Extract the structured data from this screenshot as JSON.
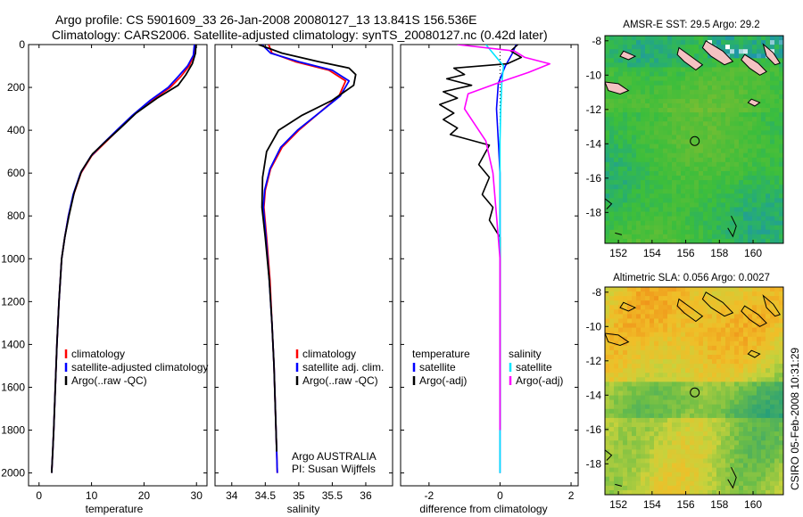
{
  "header": {
    "line1": "Argo profile: CS 5901609_33 26-Jan-2008 20080127_13 13.841S 156.536E",
    "line2": "Climatology: CARS2006. Satellite-adjusted climatology: synTS_20080127.nc (0.42d later)"
  },
  "footer": {
    "stamp": "CSIRO 05-Feb-2008 10:31:29",
    "credit_line1": "Argo AUSTRALIA",
    "credit_line2": "PI: Susan Wijffels"
  },
  "colors": {
    "climatology": "#ff0000",
    "satellite": "#0000ff",
    "argo": "#000000",
    "salinity_satellite": "#00e5ff",
    "salinity_argo": "#ff00ff"
  },
  "chart_data": [
    {
      "id": "temperature",
      "type": "line",
      "xlabel": "temperature",
      "ylabel": "",
      "xlim": [
        -2,
        32
      ],
      "ylim": [
        2060,
        0
      ],
      "xticks": [
        "0",
        "10",
        "20",
        "30"
      ],
      "yticks": [
        "0",
        "200",
        "400",
        "600",
        "800",
        "1000",
        "1200",
        "1400",
        "1600",
        "1800",
        "2000"
      ],
      "legend": {
        "position": "lower-right",
        "entries": [
          "climatology",
          "satellite-adjusted climatology",
          "Argo(..raw -QC)"
        ]
      },
      "series": [
        {
          "name": "climatology",
          "x": [
            29.7,
            29.5,
            28.6,
            27.0,
            25.0,
            21.5,
            18.0,
            15.0,
            12.5,
            10.0,
            8.0,
            6.6,
            5.6,
            4.9,
            4.3,
            3.8,
            3.4,
            3.1,
            2.8,
            2.6,
            2.4
          ],
          "y": [
            0,
            50,
            100,
            150,
            200,
            260,
            330,
            400,
            460,
            520,
            600,
            700,
            800,
            900,
            1000,
            1200,
            1400,
            1600,
            1800,
            1900,
            2000
          ]
        },
        {
          "name": "satellite-adjusted climatology",
          "x": [
            29.6,
            29.4,
            28.3,
            26.5,
            24.6,
            21.2,
            17.8,
            14.8,
            12.3,
            9.9,
            7.9,
            6.5,
            5.6,
            4.9,
            4.3,
            3.8,
            3.4,
            3.1,
            2.8,
            2.6,
            2.4
          ],
          "y": [
            0,
            50,
            100,
            150,
            200,
            260,
            330,
            400,
            460,
            520,
            600,
            700,
            800,
            900,
            1000,
            1200,
            1400,
            1600,
            1800,
            1900,
            2000
          ]
        },
        {
          "name": "Argo(..raw -QC)",
          "x": [
            29.9,
            29.8,
            29.2,
            28.0,
            26.5,
            22.5,
            18.5,
            15.5,
            12.8,
            10.2,
            8.1,
            6.7,
            5.7,
            4.9,
            4.3,
            3.8,
            3.4,
            3.1,
            2.8,
            2.6,
            2.4
          ],
          "y": [
            0,
            40,
            90,
            140,
            190,
            250,
            320,
            390,
            450,
            510,
            590,
            690,
            800,
            900,
            1000,
            1200,
            1400,
            1600,
            1800,
            1900,
            2000
          ]
        }
      ]
    },
    {
      "id": "salinity",
      "type": "line",
      "xlabel": "salinity",
      "ylabel": "",
      "xlim": [
        33.75,
        36.4
      ],
      "ylim": [
        2060,
        0
      ],
      "xticks": [
        "34",
        "34.5",
        "35",
        "35.5",
        "36"
      ],
      "yticks": [],
      "legend": {
        "position": "lower-right",
        "entries": [
          "climatology",
          "satellite adj. clim.",
          "Argo(..raw -QC)"
        ]
      },
      "series": [
        {
          "name": "climatology",
          "x": [
            34.55,
            34.6,
            34.95,
            35.45,
            35.7,
            35.6,
            35.3,
            35.0,
            34.75,
            34.58,
            34.5,
            34.48,
            34.52,
            34.57,
            34.6,
            34.63,
            34.65,
            34.67,
            34.68
          ],
          "y": [
            0,
            40,
            80,
            120,
            170,
            240,
            320,
            400,
            480,
            580,
            680,
            760,
            900,
            1100,
            1300,
            1500,
            1700,
            1900,
            2000
          ]
        },
        {
          "name": "satellite adj. clim.",
          "x": [
            34.45,
            34.58,
            35.0,
            35.5,
            35.75,
            35.62,
            35.3,
            34.98,
            34.73,
            34.57,
            34.49,
            34.47,
            34.51,
            34.56,
            34.6,
            34.63,
            34.65,
            34.67,
            34.68
          ],
          "y": [
            0,
            40,
            80,
            120,
            170,
            240,
            320,
            400,
            480,
            580,
            680,
            760,
            900,
            1100,
            1300,
            1500,
            1700,
            1900,
            2000
          ]
        },
        {
          "name": "Argo(..raw -QC)",
          "x": [
            34.4,
            34.75,
            35.3,
            35.75,
            35.85,
            35.82,
            35.5,
            35.05,
            34.7,
            34.52,
            34.46,
            34.45,
            34.5,
            34.56,
            34.6,
            34.63,
            34.65,
            34.67
          ],
          "y": [
            0,
            40,
            80,
            110,
            140,
            190,
            260,
            330,
            400,
            500,
            620,
            760,
            900,
            1100,
            1300,
            1500,
            1700,
            1900
          ]
        }
      ]
    },
    {
      "id": "difference",
      "type": "line",
      "xlabel": "difference from climatology",
      "ylabel": "",
      "xlim": [
        -2.8,
        2.2
      ],
      "ylim": [
        2060,
        0
      ],
      "xticks": [
        "-2",
        "0",
        "2"
      ],
      "yticks": [],
      "legend": {
        "position": "lower-right",
        "entries": [
          "temperature",
          "satellite",
          "Argo(-adj)",
          "salinity",
          "satellite",
          "Argo(-adj)"
        ]
      },
      "series": [
        {
          "name": "satellite",
          "x": [
            0.45,
            0.35,
            0.15,
            -0.05,
            -0.1,
            -0.05,
            0,
            0,
            0,
            0,
            0,
            0
          ],
          "y": [
            0,
            40,
            100,
            180,
            300,
            450,
            600,
            800,
            1000,
            1400,
            1800,
            2000
          ]
        },
        {
          "name": "Argo(-adj)",
          "x": [
            0.5,
            0.3,
            0.6,
            0.2,
            -1.3,
            -1.0,
            -1.5,
            -0.8,
            -1.6,
            -1.2,
            -1.7,
            -1.3,
            -1.6,
            -1.2,
            -1.4,
            -0.3,
            -0.6,
            -0.3,
            -0.5,
            -0.2,
            -0.3,
            0,
            0,
            0,
            0
          ],
          "y": [
            0,
            30,
            60,
            90,
            110,
            140,
            160,
            190,
            220,
            250,
            280,
            320,
            350,
            390,
            420,
            470,
            560,
            620,
            700,
            760,
            820,
            900,
            1000,
            1400,
            1800
          ]
        },
        {
          "name": "satellite",
          "x": [
            -0.4,
            -0.2,
            0.1,
            0.05,
            0.02,
            0,
            0,
            0,
            0,
            0,
            0,
            0
          ],
          "y": [
            0,
            40,
            100,
            180,
            300,
            450,
            600,
            800,
            1000,
            1400,
            1800,
            2000
          ]
        },
        {
          "name": "Argo(-adj)",
          "x": [
            -1.2,
            0.4,
            0.7,
            1.4,
            0.8,
            0.1,
            -0.9,
            -1.0,
            -0.4,
            -0.2,
            -0.1,
            0,
            0,
            0
          ],
          "y": [
            0,
            30,
            60,
            90,
            130,
            170,
            230,
            300,
            450,
            600,
            800,
            1000,
            1400,
            1800
          ]
        }
      ]
    },
    {
      "id": "sst-map",
      "type": "heatmap",
      "title": "AMSR-E SST: 29.5  Argo: 29.2",
      "xlabel": "",
      "ylabel": "",
      "xlim": [
        151.2,
        161.8
      ],
      "ylim": [
        -19.8,
        -7.7
      ],
      "xticks": [
        "152",
        "154",
        "156",
        "158",
        "160"
      ],
      "yticks": [
        "-8",
        "-10",
        "-12",
        "-14",
        "-16",
        "-18"
      ],
      "marker": {
        "lon": 156.536,
        "lat": -13.841
      }
    },
    {
      "id": "sla-map",
      "type": "heatmap",
      "title": "Altimetric SLA: 0.056  Argo: 0.0027",
      "xlabel": "",
      "ylabel": "",
      "xlim": [
        151.2,
        161.8
      ],
      "ylim": [
        -19.8,
        -7.7
      ],
      "xticks": [
        "152",
        "154",
        "156",
        "158",
        "160"
      ],
      "yticks": [
        "-8",
        "-10",
        "-12",
        "-14",
        "-16",
        "-18"
      ],
      "marker": {
        "lon": 156.536,
        "lat": -13.841
      }
    }
  ]
}
